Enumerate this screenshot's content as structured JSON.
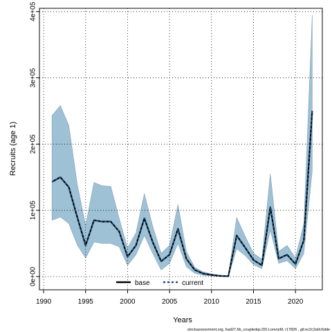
{
  "chart_data": {
    "type": "area",
    "xlabel": "Years",
    "ylabel": "Recruits (age 1)",
    "xlim": [
      1989.5,
      2023.2
    ],
    "ylim": [
      -20000,
      405000
    ],
    "x_ticks": [
      1990,
      1995,
      2000,
      2005,
      2010,
      2015,
      2020
    ],
    "x_tick_labels": [
      "1990",
      "1995",
      "2000",
      "2005",
      "2010",
      "2015",
      "2020"
    ],
    "y_ticks": [
      0,
      100000,
      200000,
      300000,
      400000
    ],
    "y_tick_labels": [
      "0e+00",
      "1e+05",
      "2e+05",
      "3e+05",
      "4e+05"
    ],
    "grid": true,
    "legend_position": "bottom-center",
    "legend": [
      {
        "label": "base",
        "style": "solid",
        "color": "#000000"
      },
      {
        "label": "current",
        "style": "dashed",
        "color": "#1f4e79"
      }
    ],
    "x": [
      1991,
      1992,
      1993,
      1994,
      1995,
      1996,
      1997,
      1998,
      1999,
      2000,
      2001,
      2002,
      2003,
      2004,
      2005,
      2006,
      2007,
      2008,
      2009,
      2010,
      2011,
      2012,
      2013,
      2014,
      2015,
      2016,
      2017,
      2018,
      2019,
      2020,
      2021,
      2022
    ],
    "series": [
      {
        "name": "base",
        "values": [
          143000,
          150000,
          135000,
          90000,
          47000,
          85000,
          83000,
          83000,
          68000,
          30000,
          47000,
          88000,
          52000,
          23000,
          33000,
          72000,
          27000,
          10000,
          4500,
          2500,
          1000,
          500,
          62000,
          44000,
          25000,
          17000,
          105000,
          27000,
          33000,
          19000,
          55000,
          250000
        ]
      },
      {
        "name": "current",
        "values": [
          143000,
          150000,
          135000,
          90000,
          47000,
          85000,
          83000,
          83000,
          68000,
          30000,
          47000,
          88000,
          52000,
          23000,
          33000,
          72000,
          27000,
          10000,
          4500,
          2500,
          1000,
          500,
          62000,
          44000,
          25000,
          17000,
          105000,
          27000,
          33000,
          19000,
          55000,
          250000
        ]
      }
    ],
    "band": {
      "color": "#9ec1d5",
      "lower": [
        85000,
        90000,
        80000,
        48000,
        28000,
        52000,
        50000,
        50000,
        45000,
        17000,
        33000,
        62000,
        35000,
        10000,
        20000,
        50000,
        15000,
        5000,
        2000,
        1000,
        500,
        200,
        42000,
        32000,
        18000,
        12000,
        70000,
        20000,
        24000,
        12000,
        35000,
        160000
      ],
      "upper": [
        243000,
        258000,
        228000,
        140000,
        77000,
        142000,
        137000,
        136000,
        88000,
        43000,
        66000,
        125000,
        76000,
        35000,
        47000,
        109000,
        38000,
        14000,
        7000,
        4000,
        2000,
        1000,
        89000,
        61000,
        35000,
        26000,
        155000,
        38000,
        47000,
        28000,
        80000,
        395000
      ]
    }
  },
  "footer_text": "stockassessment.org, had27.6b_coupledqs.DD.LorenzM, r17826 , git:ec2c2a0c6dde"
}
